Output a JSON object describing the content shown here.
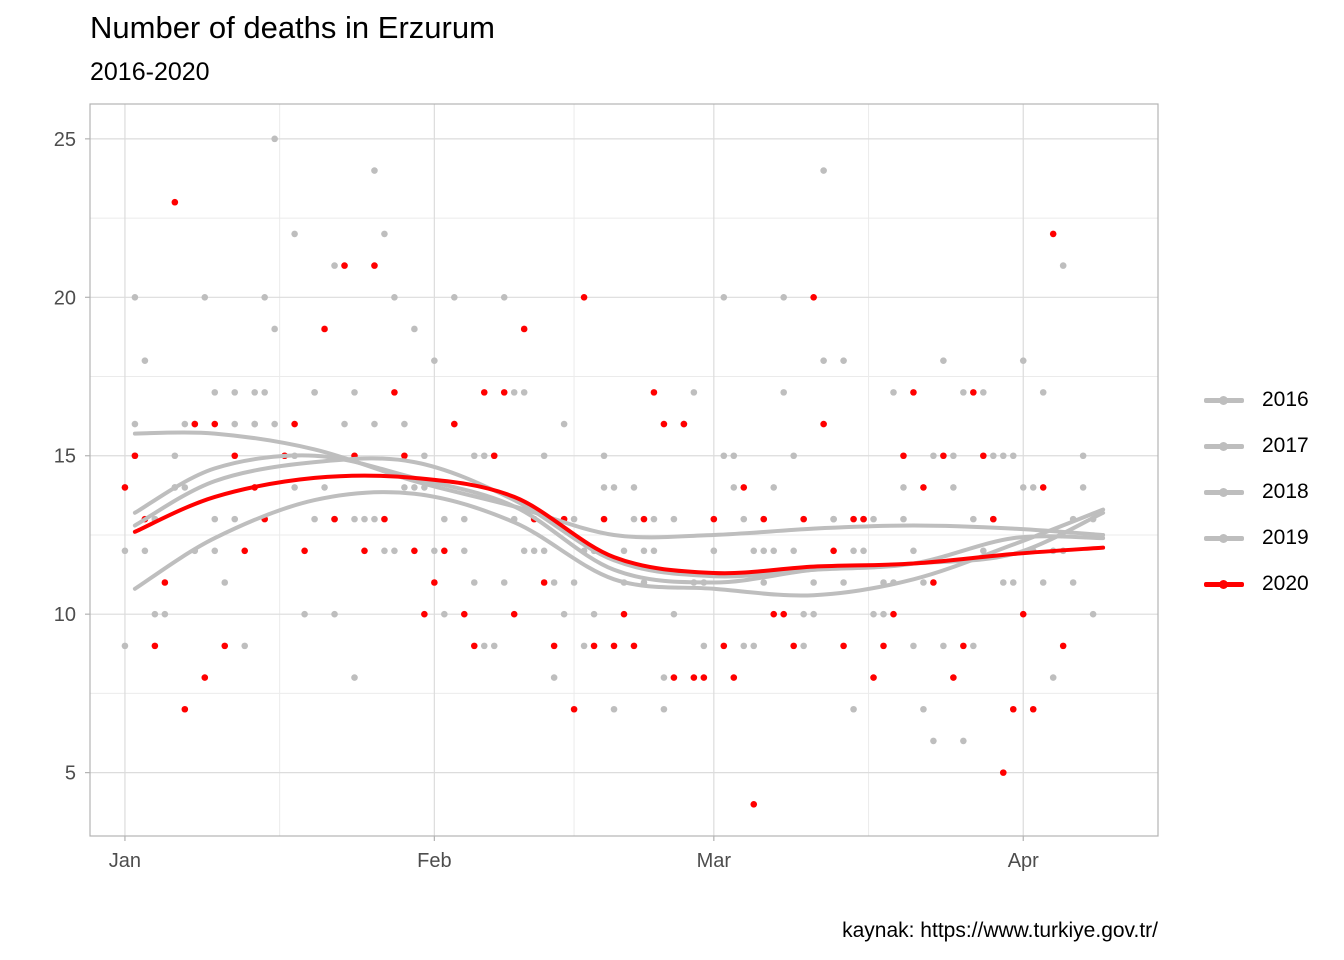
{
  "chart_data": {
    "type": "scatter",
    "title": "Number of deaths in Erzurum",
    "subtitle": "2016-2020",
    "caption": "kaynak: https://www.turkiye.gov.tr/",
    "xlabel": "",
    "ylabel": "",
    "x_ticks": [
      {
        "day": 1,
        "label": "Jan"
      },
      {
        "day": 32,
        "label": "Feb"
      },
      {
        "day": 60,
        "label": "Mar"
      },
      {
        "day": 91,
        "label": "Apr"
      }
    ],
    "y_ticks": [
      5,
      10,
      15,
      20,
      25
    ],
    "xlim": [
      -2.5,
      104.5
    ],
    "ylim": [
      3,
      26.1
    ],
    "grid": true,
    "legend_position": "right",
    "colors": {
      "2016": "#bebebe",
      "2017": "#bebebe",
      "2018": "#bebebe",
      "2019": "#bebebe",
      "2020": "#ff0000"
    },
    "series": [
      {
        "name": "2016",
        "smooth_day": [
          2,
          10,
          20,
          30,
          40,
          50,
          60,
          70,
          80,
          90,
          99
        ],
        "smooth_value": [
          15.7,
          15.7,
          15.2,
          14.2,
          13.4,
          12.5,
          12.5,
          12.7,
          12.8,
          12.7,
          12.5
        ],
        "points": [
          [
            1,
            12
          ],
          [
            2,
            16
          ],
          [
            3,
            12
          ],
          [
            4,
            10
          ],
          [
            6,
            14
          ],
          [
            7,
            14
          ],
          [
            8,
            16
          ],
          [
            10,
            12
          ],
          [
            12,
            13
          ],
          [
            14,
            16
          ],
          [
            16,
            16
          ],
          [
            18,
            15
          ],
          [
            20,
            17
          ],
          [
            22,
            13
          ],
          [
            24,
            13
          ],
          [
            26,
            16
          ],
          [
            28,
            12
          ],
          [
            30,
            14
          ],
          [
            32,
            12
          ],
          [
            34,
            16
          ],
          [
            36,
            11
          ],
          [
            38,
            15
          ],
          [
            40,
            13
          ],
          [
            42,
            12
          ],
          [
            44,
            11
          ],
          [
            46,
            13
          ],
          [
            48,
            12
          ],
          [
            50,
            14
          ],
          [
            52,
            13
          ],
          [
            54,
            12
          ],
          [
            56,
            13
          ],
          [
            58,
            11
          ],
          [
            60,
            12
          ],
          [
            62,
            14
          ],
          [
            64,
            9
          ],
          [
            66,
            12
          ],
          [
            68,
            15
          ],
          [
            70,
            11
          ],
          [
            72,
            13
          ],
          [
            74,
            12
          ],
          [
            76,
            10
          ],
          [
            78,
            11
          ],
          [
            80,
            12
          ],
          [
            82,
            15
          ],
          [
            84,
            14
          ],
          [
            86,
            13
          ],
          [
            88,
            15
          ],
          [
            90,
            11
          ],
          [
            92,
            14
          ],
          [
            94,
            12
          ],
          [
            96,
            11
          ],
          [
            98,
            13
          ]
        ]
      },
      {
        "name": "2017",
        "smooth_day": [
          2,
          10,
          20,
          30,
          40,
          50,
          60,
          70,
          80,
          90,
          99
        ],
        "smooth_value": [
          10.8,
          12.4,
          13.6,
          13.8,
          12.9,
          11.1,
          10.8,
          10.6,
          11.1,
          12.2,
          13.3
        ],
        "points": [
          [
            1,
            9
          ],
          [
            2,
            15
          ],
          [
            3,
            18
          ],
          [
            5,
            10
          ],
          [
            7,
            16
          ],
          [
            9,
            20
          ],
          [
            11,
            11
          ],
          [
            13,
            9
          ],
          [
            15,
            17
          ],
          [
            16,
            25
          ],
          [
            18,
            22
          ],
          [
            20,
            13
          ],
          [
            22,
            21
          ],
          [
            24,
            8
          ],
          [
            26,
            24
          ],
          [
            28,
            20
          ],
          [
            30,
            19
          ],
          [
            32,
            18
          ],
          [
            34,
            20
          ],
          [
            36,
            15
          ],
          [
            38,
            9
          ],
          [
            40,
            17
          ],
          [
            42,
            13
          ],
          [
            44,
            8
          ],
          [
            46,
            11
          ],
          [
            48,
            10
          ],
          [
            50,
            7
          ],
          [
            52,
            14
          ],
          [
            54,
            13
          ],
          [
            56,
            10
          ],
          [
            58,
            17
          ],
          [
            60,
            12
          ],
          [
            62,
            15
          ],
          [
            64,
            12
          ],
          [
            66,
            14
          ],
          [
            68,
            12
          ],
          [
            70,
            10
          ],
          [
            72,
            13
          ],
          [
            74,
            7
          ],
          [
            76,
            13
          ],
          [
            78,
            17
          ],
          [
            80,
            9
          ],
          [
            82,
            6
          ],
          [
            84,
            15
          ],
          [
            86,
            9
          ],
          [
            88,
            13
          ],
          [
            90,
            15
          ],
          [
            92,
            12
          ],
          [
            94,
            8
          ],
          [
            96,
            13
          ],
          [
            98,
            10
          ]
        ]
      },
      {
        "name": "2018",
        "smooth_day": [
          2,
          10,
          20,
          30,
          40,
          50,
          60,
          70,
          80,
          90,
          99
        ],
        "smooth_value": [
          13.2,
          14.6,
          15.0,
          14.3,
          13.4,
          11.4,
          11.0,
          11.4,
          11.6,
          11.9,
          13.2
        ],
        "points": [
          [
            1,
            14
          ],
          [
            2,
            20
          ],
          [
            4,
            13
          ],
          [
            6,
            14
          ],
          [
            8,
            12
          ],
          [
            10,
            17
          ],
          [
            12,
            16
          ],
          [
            14,
            17
          ],
          [
            15,
            20
          ],
          [
            17,
            15
          ],
          [
            19,
            10
          ],
          [
            21,
            14
          ],
          [
            23,
            16
          ],
          [
            25,
            13
          ],
          [
            27,
            12
          ],
          [
            29,
            14
          ],
          [
            31,
            15
          ],
          [
            33,
            13
          ],
          [
            35,
            12
          ],
          [
            37,
            15
          ],
          [
            39,
            11
          ],
          [
            41,
            17
          ],
          [
            43,
            12
          ],
          [
            45,
            16
          ],
          [
            47,
            9
          ],
          [
            49,
            15
          ],
          [
            51,
            12
          ],
          [
            53,
            11
          ],
          [
            55,
            8
          ],
          [
            57,
            16
          ],
          [
            59,
            11
          ],
          [
            61,
            20
          ],
          [
            63,
            9
          ],
          [
            65,
            12
          ],
          [
            67,
            20
          ],
          [
            69,
            9
          ],
          [
            71,
            18
          ],
          [
            73,
            11
          ],
          [
            75,
            13
          ],
          [
            77,
            11
          ],
          [
            79,
            13
          ],
          [
            81,
            7
          ],
          [
            83,
            18
          ],
          [
            85,
            6
          ],
          [
            87,
            17
          ],
          [
            89,
            15
          ],
          [
            91,
            18
          ],
          [
            93,
            11
          ],
          [
            95,
            12
          ],
          [
            97,
            14
          ]
        ]
      },
      {
        "name": "2019",
        "smooth_day": [
          2,
          10,
          20,
          30,
          40,
          50,
          60,
          70,
          80,
          90,
          99
        ],
        "smooth_value": [
          12.8,
          14.2,
          14.8,
          14.8,
          13.6,
          11.7,
          11.2,
          11.4,
          11.6,
          12.4,
          12.4
        ],
        "points": [
          [
            2,
            15
          ],
          [
            4,
            13
          ],
          [
            6,
            15
          ],
          [
            8,
            16
          ],
          [
            10,
            13
          ],
          [
            12,
            17
          ],
          [
            14,
            16
          ],
          [
            16,
            19
          ],
          [
            18,
            14
          ],
          [
            20,
            17
          ],
          [
            22,
            10
          ],
          [
            24,
            17
          ],
          [
            26,
            13
          ],
          [
            27,
            22
          ],
          [
            29,
            16
          ],
          [
            31,
            14
          ],
          [
            33,
            10
          ],
          [
            35,
            13
          ],
          [
            37,
            9
          ],
          [
            39,
            20
          ],
          [
            41,
            12
          ],
          [
            43,
            15
          ],
          [
            45,
            10
          ],
          [
            47,
            12
          ],
          [
            49,
            14
          ],
          [
            51,
            11
          ],
          [
            53,
            12
          ],
          [
            55,
            7
          ],
          [
            57,
            16
          ],
          [
            59,
            9
          ],
          [
            61,
            15
          ],
          [
            63,
            13
          ],
          [
            65,
            11
          ],
          [
            67,
            17
          ],
          [
            69,
            10
          ],
          [
            71,
            24
          ],
          [
            73,
            18
          ],
          [
            75,
            12
          ],
          [
            77,
            10
          ],
          [
            79,
            14
          ],
          [
            81,
            11
          ],
          [
            83,
            9
          ],
          [
            85,
            17
          ],
          [
            87,
            12
          ],
          [
            89,
            11
          ],
          [
            91,
            14
          ],
          [
            93,
            17
          ],
          [
            95,
            21
          ],
          [
            97,
            15
          ]
        ]
      },
      {
        "name": "2020",
        "smooth_day": [
          2,
          10,
          20,
          30,
          40,
          50,
          60,
          70,
          80,
          90,
          99
        ],
        "smooth_value": [
          12.6,
          13.7,
          14.3,
          14.3,
          13.7,
          11.8,
          11.3,
          11.5,
          11.6,
          11.9,
          12.1
        ],
        "points": [
          [
            1,
            14
          ],
          [
            2,
            15
          ],
          [
            3,
            13
          ],
          [
            4,
            9
          ],
          [
            5,
            11
          ],
          [
            6,
            23
          ],
          [
            7,
            7
          ],
          [
            8,
            16
          ],
          [
            9,
            8
          ],
          [
            10,
            16
          ],
          [
            11,
            9
          ],
          [
            12,
            15
          ],
          [
            13,
            12
          ],
          [
            14,
            14
          ],
          [
            15,
            13
          ],
          [
            17,
            15
          ],
          [
            18,
            16
          ],
          [
            19,
            12
          ],
          [
            21,
            19
          ],
          [
            22,
            13
          ],
          [
            23,
            21
          ],
          [
            24,
            15
          ],
          [
            25,
            12
          ],
          [
            26,
            21
          ],
          [
            27,
            13
          ],
          [
            28,
            17
          ],
          [
            29,
            15
          ],
          [
            30,
            12
          ],
          [
            31,
            10
          ],
          [
            32,
            11
          ],
          [
            33,
            12
          ],
          [
            34,
            16
          ],
          [
            35,
            10
          ],
          [
            36,
            9
          ],
          [
            37,
            17
          ],
          [
            38,
            15
          ],
          [
            39,
            17
          ],
          [
            40,
            10
          ],
          [
            41,
            19
          ],
          [
            42,
            13
          ],
          [
            43,
            11
          ],
          [
            44,
            9
          ],
          [
            45,
            13
          ],
          [
            46,
            7
          ],
          [
            47,
            20
          ],
          [
            48,
            9
          ],
          [
            49,
            13
          ],
          [
            50,
            9
          ],
          [
            51,
            10
          ],
          [
            52,
            9
          ],
          [
            53,
            13
          ],
          [
            54,
            17
          ],
          [
            55,
            16
          ],
          [
            56,
            8
          ],
          [
            57,
            16
          ],
          [
            58,
            8
          ],
          [
            59,
            8
          ],
          [
            60,
            13
          ],
          [
            61,
            9
          ],
          [
            62,
            8
          ],
          [
            63,
            14
          ],
          [
            64,
            4
          ],
          [
            65,
            13
          ],
          [
            66,
            10
          ],
          [
            67,
            10
          ],
          [
            68,
            9
          ],
          [
            69,
            13
          ],
          [
            70,
            20
          ],
          [
            71,
            16
          ],
          [
            72,
            12
          ],
          [
            73,
            9
          ],
          [
            74,
            13
          ],
          [
            75,
            13
          ],
          [
            76,
            8
          ],
          [
            77,
            9
          ],
          [
            78,
            10
          ],
          [
            79,
            15
          ],
          [
            80,
            17
          ],
          [
            81,
            14
          ],
          [
            82,
            11
          ],
          [
            83,
            15
          ],
          [
            84,
            8
          ],
          [
            85,
            9
          ],
          [
            86,
            17
          ],
          [
            87,
            15
          ],
          [
            88,
            13
          ],
          [
            89,
            5
          ],
          [
            90,
            7
          ],
          [
            91,
            10
          ],
          [
            92,
            7
          ],
          [
            93,
            14
          ],
          [
            94,
            22
          ],
          [
            95,
            9
          ]
        ]
      }
    ]
  }
}
